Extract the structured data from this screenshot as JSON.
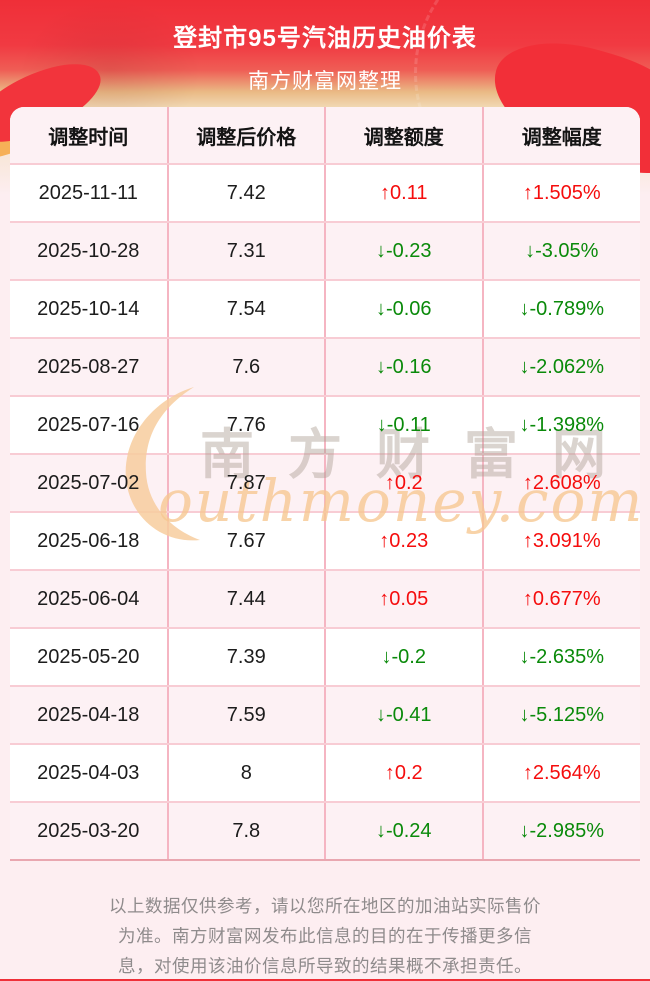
{
  "header": {
    "title": "登封市95号汽油历史油价表",
    "subtitle": "南方财富网整理"
  },
  "chart_data": {
    "type": "table",
    "title": "登封市95号汽油历史油价表",
    "subtitle": "南方财富网整理",
    "columns": [
      "调整时间",
      "调整后价格",
      "调整额度",
      "调整幅度"
    ],
    "rows": [
      {
        "date": "2025-11-11",
        "price": "7.42",
        "change": "↑0.11",
        "pct": "↑1.505%",
        "trend": "up"
      },
      {
        "date": "2025-10-28",
        "price": "7.31",
        "change": "↓-0.23",
        "pct": "↓-3.05%",
        "trend": "down"
      },
      {
        "date": "2025-10-14",
        "price": "7.54",
        "change": "↓-0.06",
        "pct": "↓-0.789%",
        "trend": "down"
      },
      {
        "date": "2025-08-27",
        "price": "7.6",
        "change": "↓-0.16",
        "pct": "↓-2.062%",
        "trend": "down"
      },
      {
        "date": "2025-07-16",
        "price": "7.76",
        "change": "↓-0.11",
        "pct": "↓-1.398%",
        "trend": "down"
      },
      {
        "date": "2025-07-02",
        "price": "7.87",
        "change": "↑0.2",
        "pct": "↑2.608%",
        "trend": "up"
      },
      {
        "date": "2025-06-18",
        "price": "7.67",
        "change": "↑0.23",
        "pct": "↑3.091%",
        "trend": "up"
      },
      {
        "date": "2025-06-04",
        "price": "7.44",
        "change": "↑0.05",
        "pct": "↑0.677%",
        "trend": "up"
      },
      {
        "date": "2025-05-20",
        "price": "7.39",
        "change": "↓-0.2",
        "pct": "↓-2.635%",
        "trend": "down"
      },
      {
        "date": "2025-04-18",
        "price": "7.59",
        "change": "↓-0.41",
        "pct": "↓-5.125%",
        "trend": "down"
      },
      {
        "date": "2025-04-03",
        "price": "8",
        "change": "↑0.2",
        "pct": "↑2.564%",
        "trend": "up"
      },
      {
        "date": "2025-03-20",
        "price": "7.8",
        "change": "↓-0.24",
        "pct": "↓-2.985%",
        "trend": "down"
      }
    ]
  },
  "watermark": {
    "cn": "南方财富网",
    "en": "outhmoney.com"
  },
  "footer": {
    "lines": [
      "以上数据仅供参考，请以您所在地区的加油站实际售价",
      "为准。南方财富网发布此信息的目的在于传播更多信",
      "息，对使用该油价信息所导致的结果概不承担责任。"
    ]
  },
  "colors": {
    "up": "#f50d0d",
    "down": "#0a8a0a",
    "banner_red": "#f0343c",
    "row_pink": "#fdf1f4",
    "border_pink": "#f5b5c2",
    "watermark_orange": "#f6c68f"
  }
}
